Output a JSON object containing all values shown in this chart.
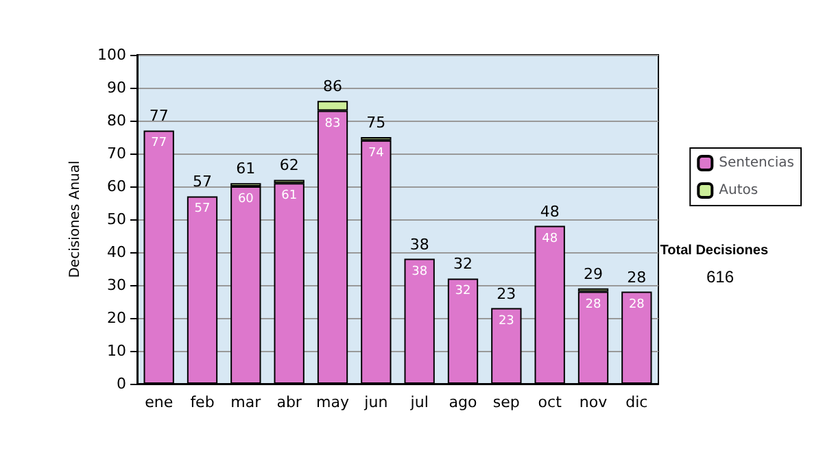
{
  "chart_data": {
    "type": "bar",
    "ylabel": "Decisiones Anual",
    "categories": [
      "ene",
      "feb",
      "mar",
      "abr",
      "may",
      "jun",
      "jul",
      "ago",
      "sep",
      "oct",
      "nov",
      "dic"
    ],
    "stacked": true,
    "series": [
      {
        "name": "Sentencias",
        "color": "#dd77cc",
        "values": [
          77,
          57,
          60,
          61,
          83,
          74,
          38,
          32,
          23,
          48,
          28,
          28
        ],
        "value_labels": [
          "77",
          "57",
          "60",
          "61",
          "83",
          "74",
          "38",
          "32",
          "23",
          "48",
          "28",
          "28"
        ]
      },
      {
        "name": "Autos",
        "color": "#ccee99",
        "values": [
          0,
          0,
          1,
          1,
          3,
          1,
          0,
          0,
          0,
          0,
          1,
          0
        ]
      }
    ],
    "totals": [
      "77",
      "57",
      "61",
      "62",
      "86",
      "75",
      "38",
      "32",
      "23",
      "48",
      "29",
      "28"
    ],
    "ylim": [
      0,
      100
    ],
    "yticks": [
      0,
      10,
      20,
      30,
      40,
      50,
      60,
      70,
      80,
      90,
      100
    ],
    "grid": "y",
    "legend": "right",
    "annotations": [
      "Total Decisiones",
      "616"
    ]
  }
}
